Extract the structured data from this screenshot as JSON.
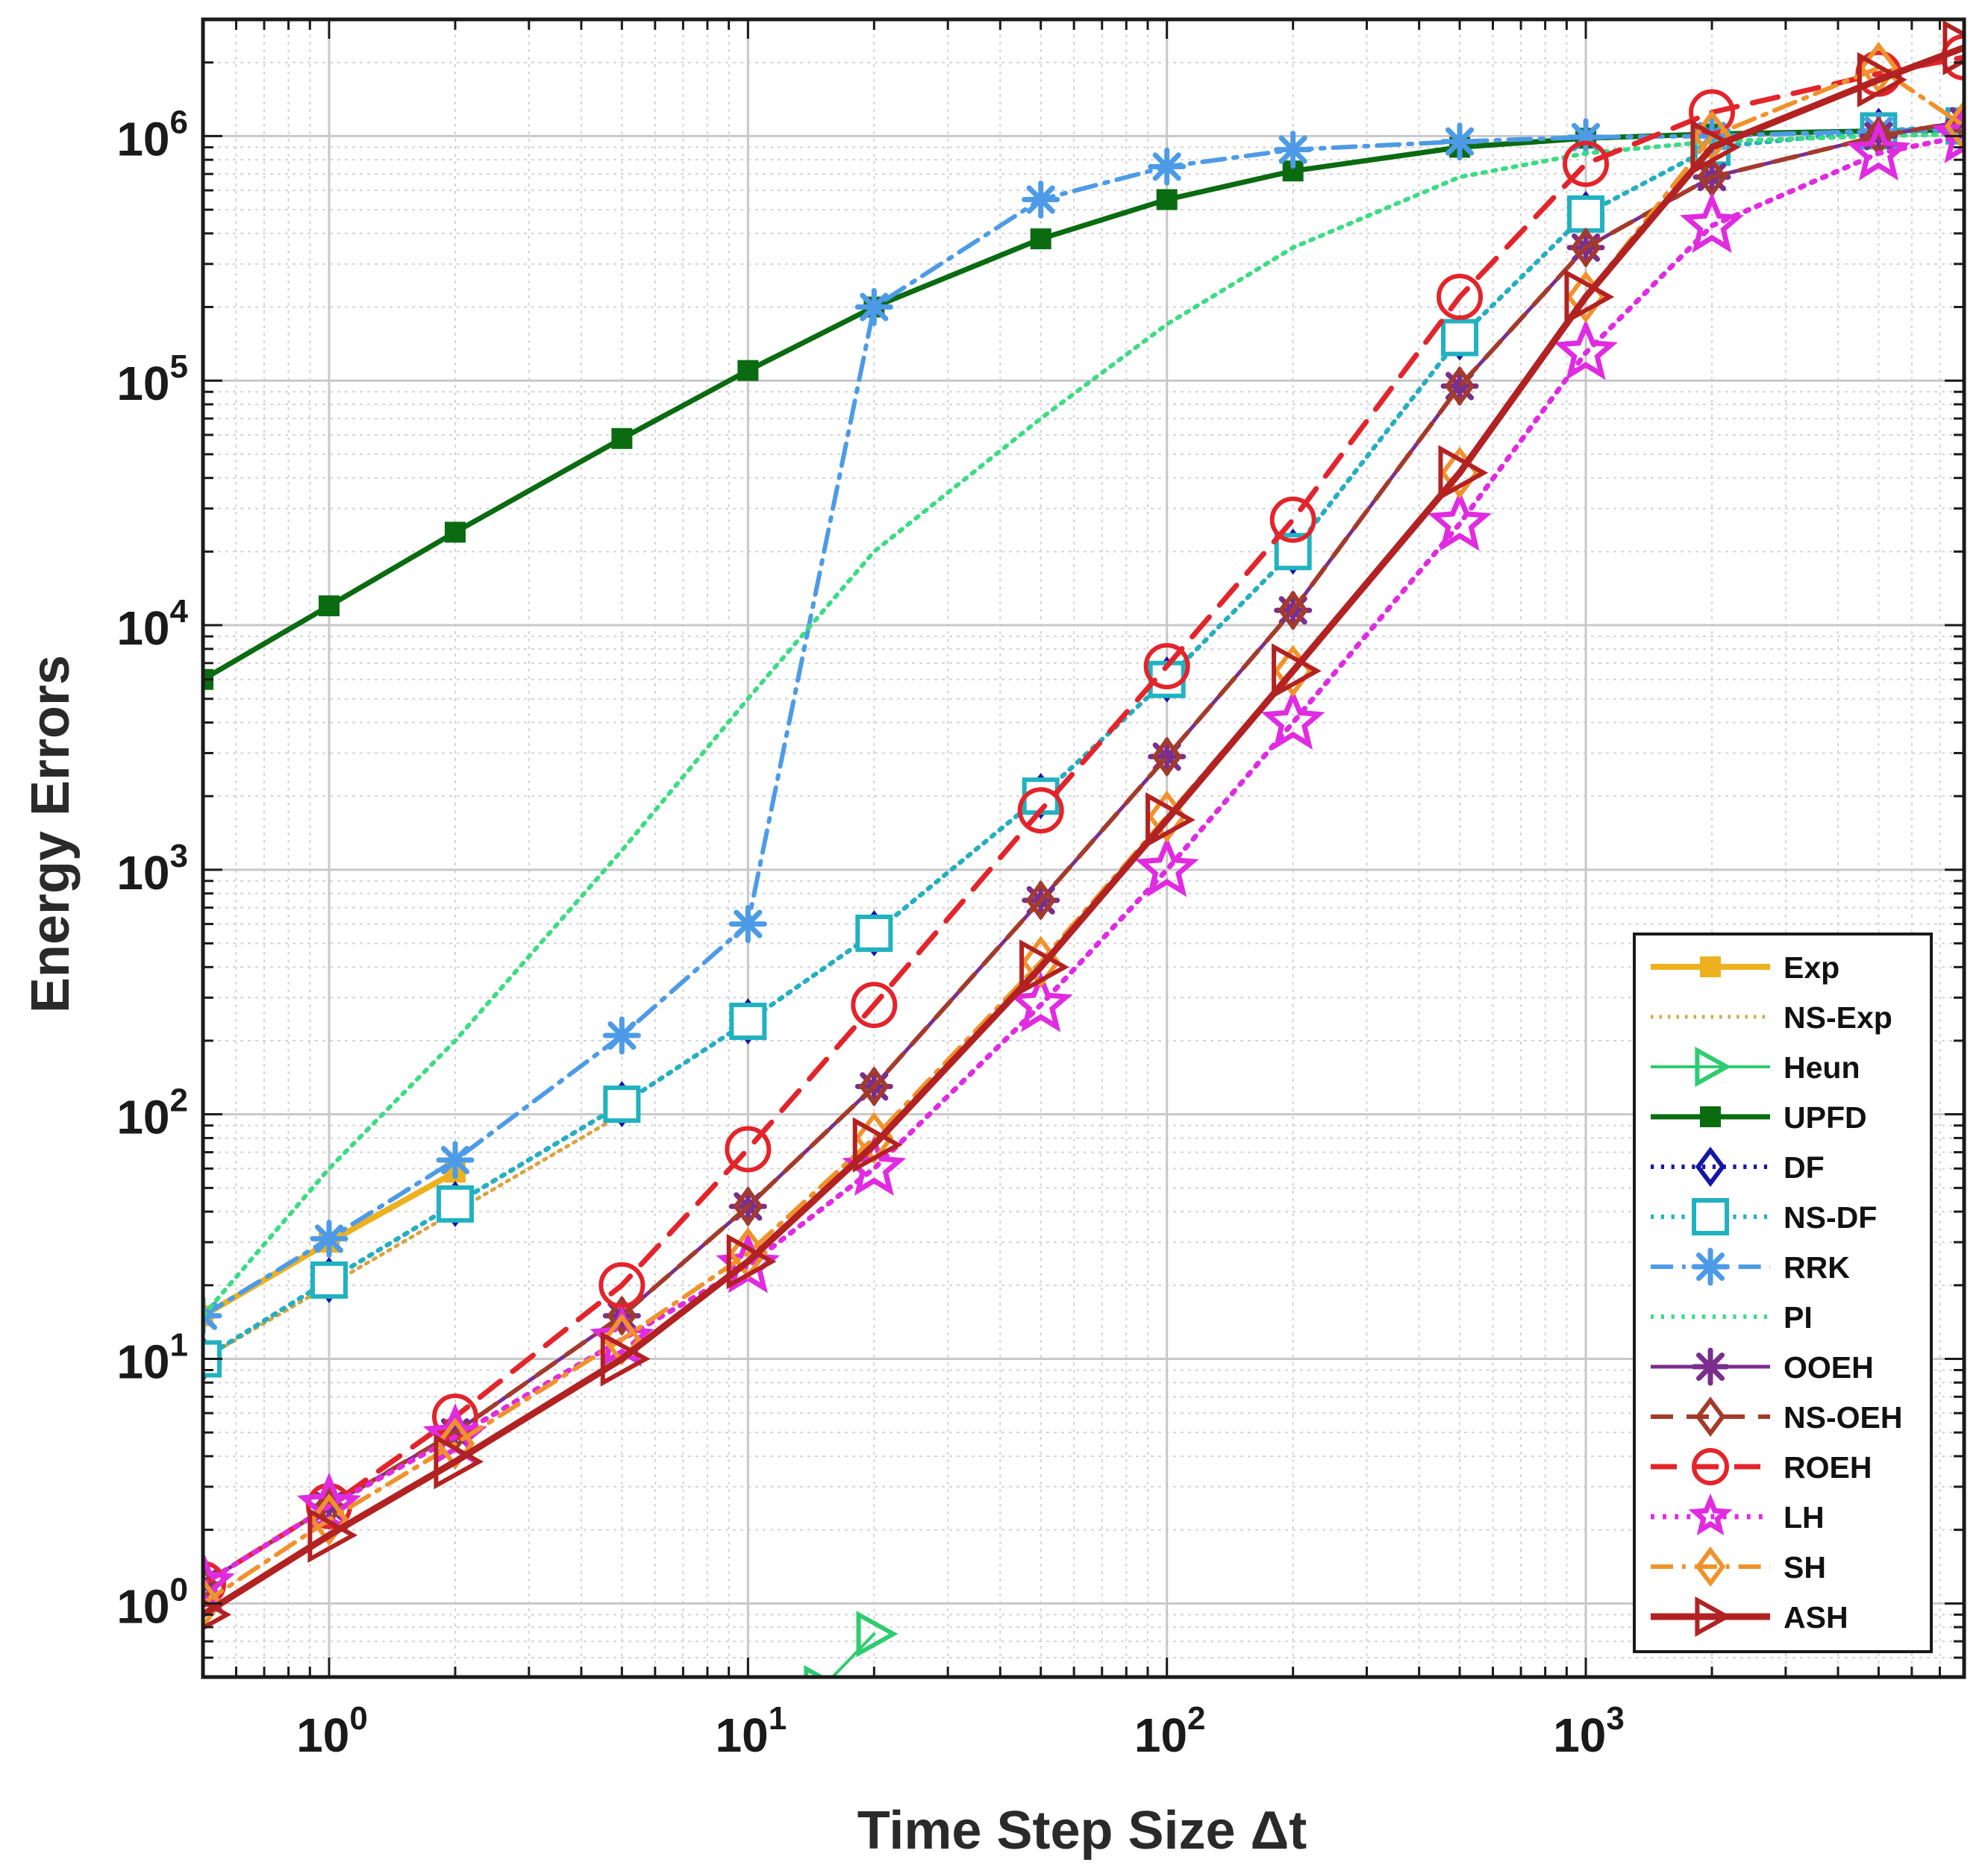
{
  "chart_data": {
    "type": "line",
    "xscale": "log",
    "yscale": "log",
    "xlabel": "Time Step Size Δt",
    "ylabel": "Energy Errors",
    "xlim": [
      0.5,
      8000
    ],
    "ylim": [
      0.5,
      3000000
    ],
    "grid": true,
    "legend_position": "bottom-right",
    "x_ticks": [
      {
        "value": 1,
        "base": "10",
        "exp": "0"
      },
      {
        "value": 10,
        "base": "10",
        "exp": "1"
      },
      {
        "value": 100,
        "base": "10",
        "exp": "2"
      },
      {
        "value": 1000,
        "base": "10",
        "exp": "3"
      }
    ],
    "y_ticks": [
      {
        "value": 1,
        "base": "10",
        "exp": "0"
      },
      {
        "value": 10,
        "base": "10",
        "exp": "1"
      },
      {
        "value": 100,
        "base": "10",
        "exp": "2"
      },
      {
        "value": 1000,
        "base": "10",
        "exp": "3"
      },
      {
        "value": 10000,
        "base": "10",
        "exp": "4"
      },
      {
        "value": 100000,
        "base": "10",
        "exp": "5"
      },
      {
        "value": 1000000,
        "base": "10",
        "exp": "6"
      }
    ],
    "series": [
      {
        "name": "Exp",
        "color": "#EDB120",
        "dash": "solid",
        "width": 8,
        "marker": "square",
        "marker_size": 13,
        "x": [
          0.5,
          1,
          2
        ],
        "y": [
          15,
          30,
          58
        ]
      },
      {
        "name": "NS-Exp",
        "color": "#D9A441",
        "dash": "dot",
        "width": 5,
        "marker": "none",
        "marker_size": 0,
        "x": [
          0.5,
          1,
          2,
          5
        ],
        "y": [
          10,
          20,
          40,
          100
        ]
      },
      {
        "name": "Heun",
        "color": "#2ECC71",
        "dash": "solid",
        "width": 4,
        "marker": "triangle-right",
        "marker_size": 26,
        "x": [
          15,
          20
        ],
        "y": [
          0.45,
          0.75
        ]
      },
      {
        "name": "UPFD",
        "color": "#0B6B11",
        "dash": "solid",
        "width": 7,
        "marker": "square",
        "marker_size": 13,
        "x": [
          0.5,
          1,
          2,
          5,
          10,
          20,
          50,
          100,
          200,
          500,
          1000,
          2000,
          5000,
          8000
        ],
        "y": [
          6000,
          12000,
          24000,
          58000,
          110000,
          200000,
          380000,
          550000,
          720000,
          900000,
          980000,
          1020000,
          1050000,
          1060000
        ]
      },
      {
        "name": "DF",
        "color": "#1515A8",
        "dash": "dot",
        "width": 6,
        "marker": "diamond",
        "marker_size": 26,
        "x": [
          0.5,
          1,
          2,
          5,
          10,
          20,
          50,
          100,
          200,
          500,
          1000,
          2000,
          5000,
          8000
        ],
        "y": [
          10,
          21,
          43,
          110,
          240,
          550,
          2000,
          6000,
          20000,
          150000,
          480000,
          900000,
          1050000,
          1100000
        ]
      },
      {
        "name": "NS-DF",
        "color": "#20B2C0",
        "dash": "dot",
        "width": 6,
        "marker": "square",
        "marker_size": 22,
        "x": [
          0.5,
          1,
          2,
          5,
          10,
          20,
          50,
          100,
          200,
          500,
          1000,
          2000,
          5000,
          8000
        ],
        "y": [
          10,
          21,
          43,
          110,
          240,
          550,
          2000,
          6000,
          20000,
          150000,
          480000,
          900000,
          1050000,
          1100000
        ]
      },
      {
        "name": "RRK",
        "color": "#4D9BE6",
        "dash": "dashdot",
        "width": 6,
        "marker": "asterisk",
        "marker_size": 22,
        "x": [
          0.5,
          1,
          2,
          5,
          10,
          20,
          50,
          100,
          200,
          500,
          1000,
          2000,
          5000,
          8000
        ],
        "y": [
          15,
          31,
          65,
          210,
          600,
          200000,
          550000,
          750000,
          880000,
          950000,
          990000,
          1000000,
          1050000,
          1060000
        ]
      },
      {
        "name": "PI",
        "color": "#3DDC84",
        "dash": "dot",
        "width": 6,
        "marker": "none",
        "marker_size": 0,
        "x": [
          0.5,
          1,
          2,
          5,
          10,
          20,
          50,
          100,
          200,
          500,
          1000,
          2000,
          5000,
          8000
        ],
        "y": [
          15,
          60,
          200,
          1200,
          5000,
          20000,
          70000,
          170000,
          350000,
          680000,
          850000,
          950000,
          1000000,
          1020000
        ]
      },
      {
        "name": "OOEH",
        "color": "#7A2E8E",
        "dash": "solid",
        "width": 5,
        "marker": "asterisk",
        "marker_size": 22,
        "x": [
          0.5,
          1,
          2,
          5,
          10,
          20,
          50,
          100,
          200,
          500,
          1000,
          2000,
          5000,
          8000
        ],
        "y": [
          1.2,
          2.5,
          5,
          15,
          42,
          130,
          750,
          2900,
          11500,
          95000,
          350000,
          680000,
          1000000,
          1150000
        ]
      },
      {
        "name": "NS-OEH",
        "color": "#A33B2B",
        "dash": "dash",
        "width": 6,
        "marker": "diamond",
        "marker_size": 22,
        "x": [
          0.5,
          1,
          2,
          5,
          10,
          20,
          50,
          100,
          200,
          500,
          1000,
          2000,
          5000,
          8000
        ],
        "y": [
          1.2,
          2.5,
          5,
          15,
          42,
          130,
          750,
          2900,
          11500,
          95000,
          350000,
          680000,
          1000000,
          1150000
        ]
      },
      {
        "name": "ROEH",
        "color": "#E3242B",
        "dash": "dash",
        "width": 7,
        "marker": "circle",
        "marker_size": 28,
        "x": [
          0.5,
          1,
          2,
          5,
          10,
          20,
          50,
          100,
          200,
          500,
          1000,
          2000,
          5000,
          8000
        ],
        "y": [
          1.2,
          2.5,
          5.8,
          20,
          72,
          280,
          1750,
          6800,
          27000,
          220000,
          770000,
          1250000,
          1800000,
          2100000
        ]
      },
      {
        "name": "LH",
        "color": "#E02BE0",
        "dash": "dot",
        "width": 7,
        "marker": "star",
        "marker_size": 36,
        "x": [
          0.5,
          1,
          2,
          5,
          10,
          20,
          50,
          100,
          200,
          500,
          1000,
          2000,
          5000,
          8000
        ],
        "y": [
          1.2,
          2.5,
          4.8,
          12,
          24,
          60,
          280,
          1000,
          4000,
          26000,
          130000,
          430000,
          850000,
          1000000
        ]
      },
      {
        "name": "SH",
        "color": "#F0922B",
        "dash": "dashdot",
        "width": 6,
        "marker": "diamond",
        "marker_size": 30,
        "x": [
          0.5,
          1,
          2,
          5,
          10,
          20,
          50,
          100,
          200,
          500,
          1000,
          2000,
          5000,
          8000
        ],
        "y": [
          1.0,
          2.2,
          4.5,
          12,
          27,
          80,
          420,
          1650,
          6500,
          42000,
          220000,
          1000000,
          1900000,
          1100000
        ]
      },
      {
        "name": "ASH",
        "color": "#B22222",
        "dash": "solid",
        "width": 9,
        "marker": "triangle-right",
        "marker_size": 32,
        "x": [
          0.5,
          1,
          2,
          5,
          10,
          20,
          50,
          100,
          200,
          500,
          1000,
          2000,
          5000,
          8000
        ],
        "y": [
          0.9,
          1.9,
          3.8,
          10,
          25,
          75,
          400,
          1600,
          6500,
          42000,
          220000,
          900000,
          1700000,
          2300000
        ]
      }
    ]
  }
}
